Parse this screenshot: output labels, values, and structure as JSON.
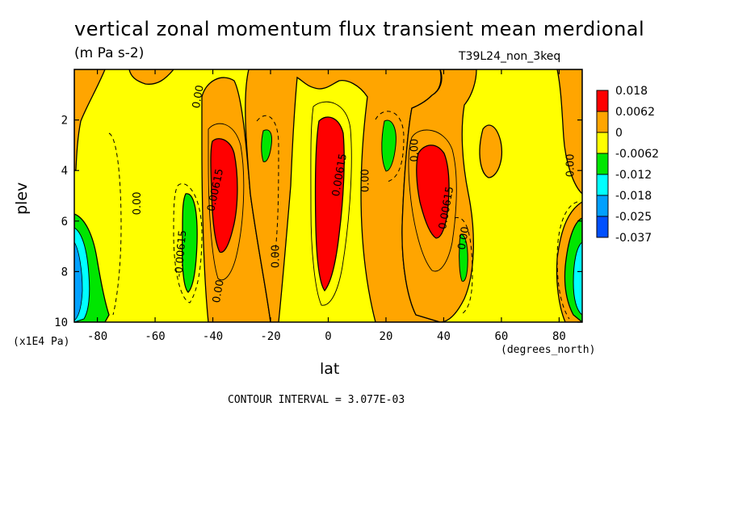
{
  "chart_data": {
    "type": "heatmap",
    "title": "vertical zonal momentum flux transient mean merdional",
    "subtitle": "(m Pa s-2)",
    "run_id": "T39L24_non_3keq",
    "xlabel": "lat",
    "ylabel": "plev",
    "x_units": "(degrees_north)",
    "y_units": "(x1E4 Pa)",
    "xlim": [
      -88,
      88
    ],
    "ylim": [
      10,
      0
    ],
    "x_ticks": [
      -80,
      -60,
      -40,
      -20,
      0,
      20,
      40,
      60,
      80
    ],
    "x_tick_labels": [
      "-80",
      "-60",
      "-40",
      "-20",
      "0",
      "20",
      "40",
      "60",
      "80"
    ],
    "y_ticks": [
      2,
      4,
      6,
      8,
      10
    ],
    "y_tick_labels": [
      "2",
      "4",
      "6",
      "8",
      "10"
    ],
    "contour_interval_text": "CONTOUR INTERVAL = 3.077E-03",
    "legend": {
      "placement": "right",
      "levels": [
        "0.018",
        "0.0062",
        "0",
        "-0.0062",
        "-0.012",
        "-0.018",
        "-0.025",
        "-0.037"
      ],
      "colors": [
        "#ff0000",
        "#ffa500",
        "#ffff00",
        "#00e600",
        "#00ffff",
        "#00a0ff",
        "#0050ff"
      ]
    },
    "contour_labels": [
      {
        "text": "0.00",
        "lat": -44,
        "p": 1.1,
        "angle": -80
      },
      {
        "text": "0.00615",
        "lat": -38,
        "p": 4.8,
        "angle": -78
      },
      {
        "text": "0.00",
        "lat": -65,
        "p": 5.3,
        "angle": -90
      },
      {
        "text": "-0.00615",
        "lat": -50,
        "p": 7.3,
        "angle": -85
      },
      {
        "text": "0.00",
        "lat": -37,
        "p": 8.8,
        "angle": -80
      },
      {
        "text": "0.00",
        "lat": -17,
        "p": 7.4,
        "angle": -90
      },
      {
        "text": "0.00615",
        "lat": 5,
        "p": 4.2,
        "angle": -80
      },
      {
        "text": "0.00",
        "lat": 14,
        "p": 4.4,
        "angle": -90
      },
      {
        "text": "0.00",
        "lat": 31,
        "p": 3.2,
        "angle": -90
      },
      {
        "text": "0.00615",
        "lat": 42,
        "p": 5.5,
        "angle": -80
      },
      {
        "text": "0.00",
        "lat": 48,
        "p": 6.7,
        "angle": -80
      },
      {
        "text": "0.00",
        "lat": 85,
        "p": 3.8,
        "angle": -90
      }
    ]
  }
}
